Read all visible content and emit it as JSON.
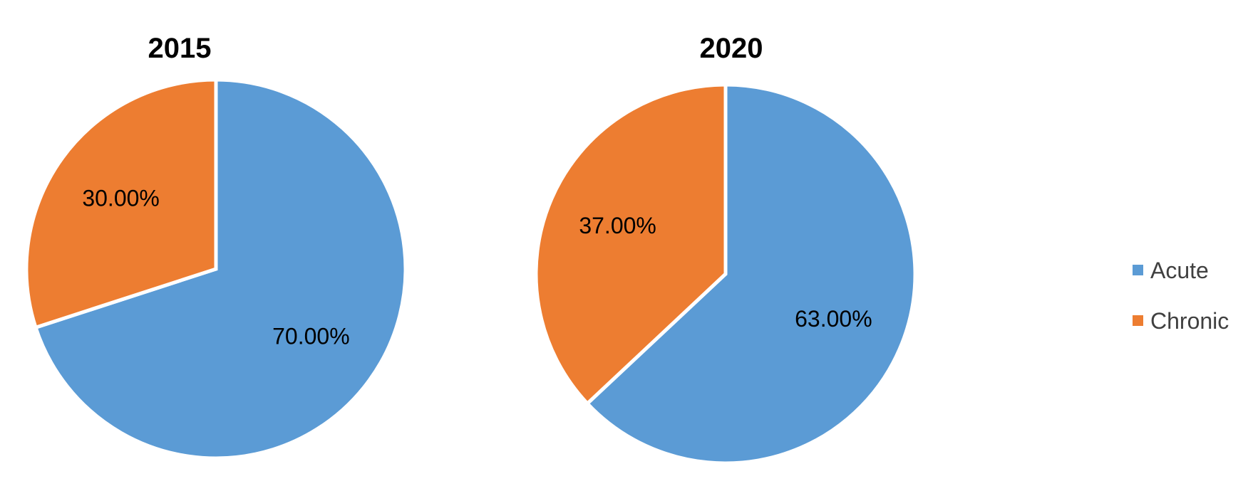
{
  "chart_data": [
    {
      "type": "pie",
      "title": "2015",
      "categories": [
        "Acute",
        "Chronic"
      ],
      "values": [
        70.0,
        30.0
      ],
      "data_labels": [
        "70.00%",
        "30.00%"
      ],
      "colors": [
        "#5B9BD5",
        "#ED7D31"
      ],
      "start_angle_deg": 0,
      "direction": "clockwise"
    },
    {
      "type": "pie",
      "title": "2020",
      "categories": [
        "Acute",
        "Chronic"
      ],
      "values": [
        63.0,
        37.0
      ],
      "data_labels": [
        "63.00%",
        "37.00%"
      ],
      "colors": [
        "#5B9BD5",
        "#ED7D31"
      ],
      "start_angle_deg": 0,
      "direction": "clockwise"
    }
  ],
  "legend": {
    "placement": "right",
    "items": [
      {
        "label": "Acute",
        "color": "#5B9BD5"
      },
      {
        "label": "Chronic",
        "color": "#ED7D31"
      }
    ]
  }
}
